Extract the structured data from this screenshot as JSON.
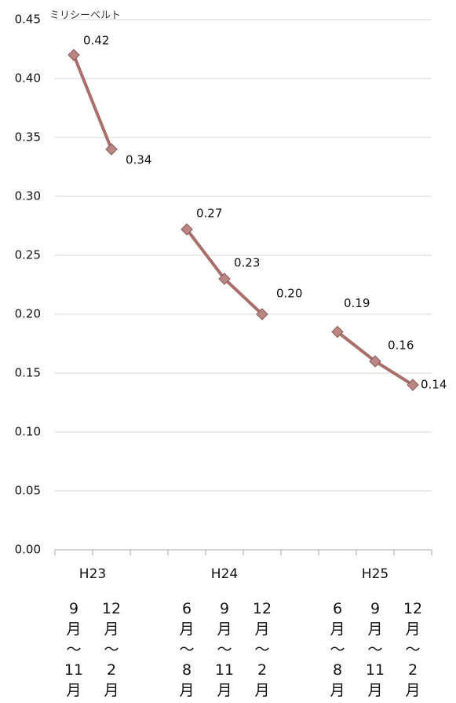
{
  "chart_data": {
    "type": "line",
    "y_unit_label": "ミリシーベルト",
    "categories": [
      "9月〜11月",
      "12月〜2月",
      null,
      "6月〜8月",
      "9月〜11月",
      "12月〜2月",
      null,
      "6月〜8月",
      "9月〜11月",
      "12月〜2月"
    ],
    "x_groups": [
      "H23",
      "H24",
      "H25"
    ],
    "values": [
      0.42,
      0.34,
      null,
      0.272,
      0.23,
      0.2,
      null,
      0.185,
      0.16,
      0.14
    ],
    "value_labels": [
      "0.42",
      "0.34",
      null,
      "0.27",
      "0.23",
      "0.20",
      null,
      "0.19",
      "0.16",
      "0.14"
    ],
    "color": "#a86f6c",
    "ylim": [
      0,
      0.45
    ],
    "yticks": [
      {
        "value": 0,
        "label": "0.00"
      },
      0.05,
      {
        "value": 0.1,
        "label": "0.10"
      },
      0.15,
      {
        "value": 0.2,
        "label": "0.20"
      },
      0.25,
      {
        "value": 0.3,
        "label": "0.30"
      },
      0.35,
      {
        "value": 0.4,
        "label": "0.40"
      },
      0.45
    ],
    "grid": true
  }
}
